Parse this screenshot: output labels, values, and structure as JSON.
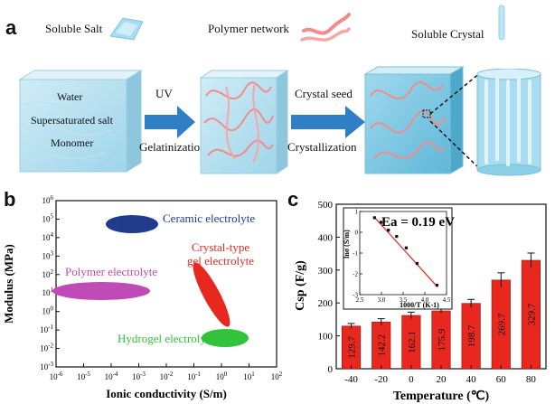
{
  "panel_a": {
    "letter": "a",
    "legend": {
      "soluble_salt": "Soluble Salt",
      "polymer_network": "Polymer network",
      "soluble_crystal": "Soluble Crystal"
    },
    "box_text": [
      "Water",
      "Supersaturated salt",
      "Monomer"
    ],
    "arrow1": {
      "top": "UV",
      "bottom": "Gelatinization"
    },
    "arrow2": {
      "top": "Crystal seed",
      "bottom": "Crystallization"
    }
  },
  "panel_b": {
    "letter": "b",
    "xlabel": "Ionic conductivity (S/m)",
    "ylabel": "Modulus (MPa)",
    "xticks": [
      "10-6",
      "10-5",
      "10-4",
      "10-3",
      "10-2",
      "10-1",
      "100",
      "101",
      "102"
    ],
    "yticks": [
      "10-3",
      "10-2",
      "10-1",
      "100",
      "101",
      "102",
      "103",
      "104",
      "105",
      "106"
    ],
    "regions": [
      {
        "name": "Ceramic electrolyte",
        "color": "#1f3c8c"
      },
      {
        "name": "Crystal-type gel electrolyte",
        "color": "#e8281e"
      },
      {
        "name": "Polymer electrolyte",
        "color": "#c04ab8"
      },
      {
        "name": "Hydrogel electrolyte",
        "color": "#33c23b"
      }
    ],
    "crystal_label_lines": [
      "Crystal-type",
      "gel electrolyte"
    ]
  },
  "panel_c": {
    "letter": "c"
  },
  "chart_data": [
    {
      "type": "bar",
      "title": "",
      "xlabel": "Temperature (℃)",
      "ylabel": "Csp (F/g)",
      "categories": [
        "-40",
        "-20",
        "0",
        "20",
        "40",
        "60",
        "80"
      ],
      "values": [
        129.7,
        142.2,
        162.1,
        175.9,
        198.7,
        269.7,
        329.7
      ],
      "value_labels": [
        "129.7",
        "142.2",
        "162.1",
        "175.9",
        "198.7",
        "269.7",
        "329.7"
      ],
      "errors": [
        8,
        10,
        10,
        6,
        12,
        22,
        22
      ],
      "ylim": [
        0,
        500
      ],
      "yticks": [
        "0",
        "100",
        "200",
        "300",
        "400",
        "500"
      ],
      "color": "#e8281e"
    },
    {
      "type": "scatter",
      "title": "Ea = 0.19 eV",
      "xlabel": "1000/T (K-1)",
      "ylabel": "lnσ (S/m)",
      "x": [
        2.84,
        2.99,
        3.16,
        3.35,
        3.57,
        3.82,
        4.28
      ],
      "y": [
        0.7,
        0.48,
        0.1,
        -0.2,
        -0.75,
        -1.5,
        -2.55
      ],
      "fit_line": {
        "x": [
          2.84,
          4.28
        ],
        "y": [
          0.72,
          -2.6
        ],
        "color": "#e8281e"
      },
      "xlim": [
        2.5,
        4.5
      ],
      "ylim": [
        -3,
        1
      ],
      "xticks": [
        "2.5",
        "3.0",
        "3.5",
        "4.0",
        "4.5"
      ],
      "yticks": [
        "-3",
        "-2",
        "-1",
        "0",
        "1"
      ]
    }
  ]
}
